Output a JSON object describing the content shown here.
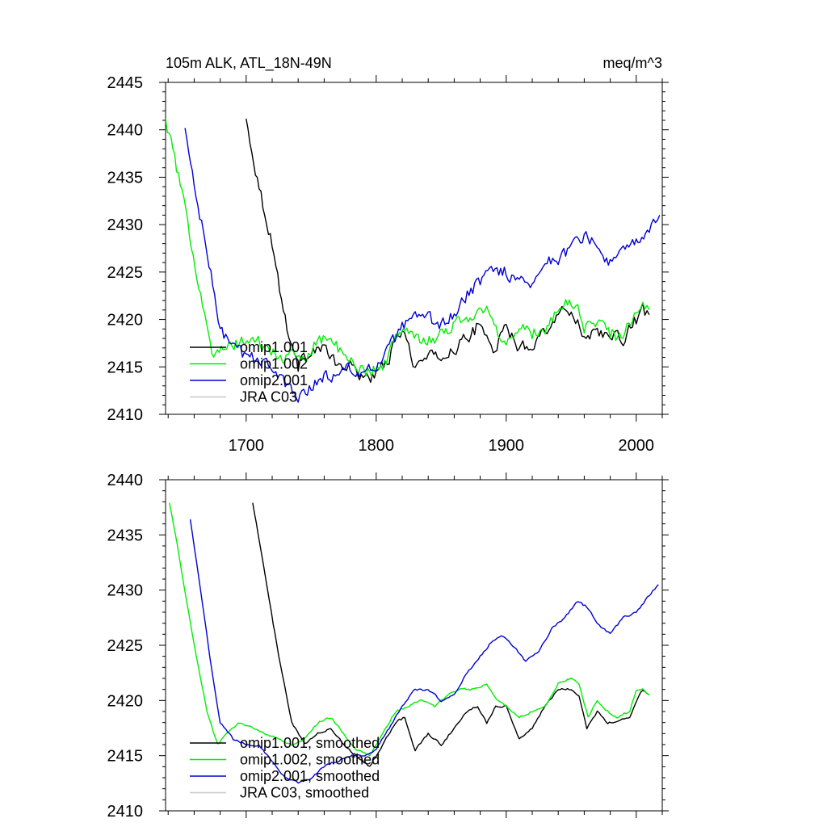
{
  "figure": {
    "title_left": "105m ALK, ATL_18N-49N",
    "title_right": "meq/m^3"
  },
  "chart_data": [
    {
      "type": "line",
      "title": "105m ALK, ATL_18N-49N",
      "units": "meq/m^3",
      "xlabel": "",
      "ylabel": "",
      "xlim": [
        1638,
        2020
      ],
      "ylim": [
        2410,
        2445
      ],
      "xticks": [
        1700,
        1800,
        1900,
        2000
      ],
      "yticks": [
        2410,
        2415,
        2420,
        2425,
        2430,
        2435,
        2440,
        2445
      ],
      "show_x_tick_labels": true,
      "noise": 0.8,
      "legend": {
        "placement": "bottom-left",
        "entries": [
          "omip1.001",
          "omip1.002",
          "omip2.001",
          "JRA C03"
        ]
      },
      "series": [
        {
          "name": "omip1.001",
          "color": "#000000",
          "keyframes": [
            [
              1700,
              2441
            ],
            [
              1710,
              2434
            ],
            [
              1720,
              2428
            ],
            [
              1730,
              2420
            ],
            [
              1740,
              2415
            ],
            [
              1750,
              2417
            ],
            [
              1760,
              2417
            ],
            [
              1770,
              2415
            ],
            [
              1780,
              2415
            ],
            [
              1790,
              2414
            ],
            [
              1800,
              2414
            ],
            [
              1810,
              2416
            ],
            [
              1820,
              2419
            ],
            [
              1825,
              2417
            ],
            [
              1830,
              2415
            ],
            [
              1840,
              2416
            ],
            [
              1850,
              2416
            ],
            [
              1860,
              2417
            ],
            [
              1870,
              2418
            ],
            [
              1880,
              2419.5
            ],
            [
              1885,
              2418
            ],
            [
              1890,
              2417
            ],
            [
              1900,
              2419
            ],
            [
              1910,
              2417
            ],
            [
              1920,
              2417.5
            ],
            [
              1930,
              2419
            ],
            [
              1940,
              2420.5
            ],
            [
              1950,
              2421
            ],
            [
              1955,
              2420
            ],
            [
              1960,
              2418
            ],
            [
              1970,
              2419
            ],
            [
              1980,
              2418
            ],
            [
              1990,
              2418
            ],
            [
              2000,
              2420
            ],
            [
              2005,
              2421
            ],
            [
              2010,
              2420.5
            ]
          ]
        },
        {
          "name": "omip1.002",
          "color": "#00ee00",
          "keyframes": [
            [
              1638,
              2441
            ],
            [
              1645,
              2437
            ],
            [
              1655,
              2430
            ],
            [
              1665,
              2423
            ],
            [
              1675,
              2416
            ],
            [
              1685,
              2417
            ],
            [
              1695,
              2417.5
            ],
            [
              1705,
              2418
            ],
            [
              1715,
              2417
            ],
            [
              1725,
              2416
            ],
            [
              1735,
              2416
            ],
            [
              1745,
              2416
            ],
            [
              1755,
              2418
            ],
            [
              1765,
              2418
            ],
            [
              1775,
              2416
            ],
            [
              1785,
              2415
            ],
            [
              1795,
              2414.5
            ],
            [
              1805,
              2415
            ],
            [
              1815,
              2418
            ],
            [
              1825,
              2419
            ],
            [
              1835,
              2418
            ],
            [
              1845,
              2418
            ],
            [
              1855,
              2419
            ],
            [
              1865,
              2420
            ],
            [
              1875,
              2420.5
            ],
            [
              1885,
              2421
            ],
            [
              1895,
              2418
            ],
            [
              1900,
              2418
            ],
            [
              1910,
              2419
            ],
            [
              1920,
              2418.5
            ],
            [
              1930,
              2419
            ],
            [
              1940,
              2421
            ],
            [
              1950,
              2422
            ],
            [
              1955,
              2421
            ],
            [
              1960,
              2419
            ],
            [
              1970,
              2420
            ],
            [
              1980,
              2418.5
            ],
            [
              1990,
              2418
            ],
            [
              2000,
              2421
            ],
            [
              2005,
              2421.5
            ],
            [
              2010,
              2421
            ]
          ]
        },
        {
          "name": "omip2.001",
          "color": "#0000d8",
          "keyframes": [
            [
              1653,
              2440
            ],
            [
              1660,
              2434
            ],
            [
              1670,
              2427
            ],
            [
              1680,
              2419
            ],
            [
              1690,
              2417
            ],
            [
              1700,
              2416
            ],
            [
              1710,
              2416
            ],
            [
              1720,
              2415
            ],
            [
              1730,
              2413
            ],
            [
              1740,
              2412
            ],
            [
              1750,
              2413
            ],
            [
              1760,
              2414
            ],
            [
              1770,
              2414
            ],
            [
              1780,
              2415
            ],
            [
              1790,
              2414
            ],
            [
              1800,
              2415
            ],
            [
              1810,
              2417
            ],
            [
              1820,
              2419
            ],
            [
              1830,
              2420
            ],
            [
              1840,
              2420
            ],
            [
              1850,
              2419.5
            ],
            [
              1860,
              2420.5
            ],
            [
              1870,
              2422.5
            ],
            [
              1880,
              2424
            ],
            [
              1890,
              2425.5
            ],
            [
              1900,
              2425
            ],
            [
              1910,
              2424
            ],
            [
              1920,
              2424
            ],
            [
              1930,
              2426
            ],
            [
              1940,
              2426.5
            ],
            [
              1950,
              2427.5
            ],
            [
              1960,
              2429
            ],
            [
              1970,
              2427.5
            ],
            [
              1980,
              2426
            ],
            [
              1990,
              2427
            ],
            [
              2000,
              2428
            ],
            [
              2010,
              2429.5
            ],
            [
              2018,
              2431
            ]
          ]
        },
        {
          "name": "JRA C03",
          "color": "#c8c8c8",
          "keyframes": []
        }
      ]
    },
    {
      "type": "line",
      "title": "",
      "xlabel": "",
      "ylabel": "",
      "xlim": [
        1638,
        2020
      ],
      "ylim": [
        2410,
        2440
      ],
      "xticks": [
        1700,
        1800,
        1900,
        2000
      ],
      "yticks": [
        2410,
        2415,
        2420,
        2425,
        2430,
        2435,
        2440
      ],
      "show_x_tick_labels": false,
      "noise": 0.12,
      "legend": {
        "placement": "bottom-left",
        "entries": [
          "omip1.001, smoothed",
          "omip1.002, smoothed",
          "omip2.001, smoothed",
          "JRA C03, smoothed"
        ]
      },
      "series": [
        {
          "name": "omip1.001, smoothed",
          "color": "#000000",
          "keyframes": [
            [
              1705,
              2438
            ],
            [
              1715,
              2431
            ],
            [
              1725,
              2424
            ],
            [
              1735,
              2418
            ],
            [
              1745,
              2416
            ],
            [
              1755,
              2417
            ],
            [
              1765,
              2417.5
            ],
            [
              1775,
              2416
            ],
            [
              1785,
              2415
            ],
            [
              1795,
              2414
            ],
            [
              1805,
              2416
            ],
            [
              1815,
              2418
            ],
            [
              1822,
              2418.5
            ],
            [
              1830,
              2415.5
            ],
            [
              1840,
              2417
            ],
            [
              1850,
              2416
            ],
            [
              1860,
              2417.5
            ],
            [
              1870,
              2419
            ],
            [
              1878,
              2419.5
            ],
            [
              1885,
              2418
            ],
            [
              1892,
              2419.5
            ],
            [
              1900,
              2419.5
            ],
            [
              1910,
              2416.5
            ],
            [
              1920,
              2417.5
            ],
            [
              1930,
              2419.5
            ],
            [
              1940,
              2421
            ],
            [
              1950,
              2421
            ],
            [
              1956,
              2420.5
            ],
            [
              1962,
              2417.5
            ],
            [
              1970,
              2419
            ],
            [
              1978,
              2418
            ],
            [
              1985,
              2418
            ],
            [
              1995,
              2418.5
            ],
            [
              2000,
              2420
            ],
            [
              2005,
              2421
            ],
            [
              2010,
              2420.5
            ]
          ]
        },
        {
          "name": "omip1.002, smoothed",
          "color": "#00ee00",
          "keyframes": [
            [
              1641,
              2438
            ],
            [
              1650,
              2432
            ],
            [
              1660,
              2425
            ],
            [
              1670,
              2419
            ],
            [
              1678,
              2416
            ],
            [
              1685,
              2417
            ],
            [
              1695,
              2418
            ],
            [
              1705,
              2417.5
            ],
            [
              1715,
              2417
            ],
            [
              1725,
              2416.5
            ],
            [
              1735,
              2416
            ],
            [
              1745,
              2416.5
            ],
            [
              1755,
              2418
            ],
            [
              1765,
              2418.5
            ],
            [
              1775,
              2417
            ],
            [
              1785,
              2415.5
            ],
            [
              1795,
              2415
            ],
            [
              1805,
              2417
            ],
            [
              1815,
              2419
            ],
            [
              1825,
              2419.5
            ],
            [
              1835,
              2420
            ],
            [
              1845,
              2419.5
            ],
            [
              1855,
              2420.5
            ],
            [
              1865,
              2421
            ],
            [
              1875,
              2421
            ],
            [
              1885,
              2421.5
            ],
            [
              1893,
              2420
            ],
            [
              1900,
              2419.5
            ],
            [
              1910,
              2418.5
            ],
            [
              1920,
              2419
            ],
            [
              1930,
              2419.5
            ],
            [
              1940,
              2421.5
            ],
            [
              1950,
              2422
            ],
            [
              1956,
              2421.5
            ],
            [
              1963,
              2418.5
            ],
            [
              1970,
              2420
            ],
            [
              1978,
              2419
            ],
            [
              1985,
              2418.5
            ],
            [
              1995,
              2419
            ],
            [
              2000,
              2421
            ],
            [
              2005,
              2421
            ],
            [
              2010,
              2420.5
            ]
          ]
        },
        {
          "name": "omip2.001, smoothed",
          "color": "#0000d8",
          "keyframes": [
            [
              1657,
              2436.5
            ],
            [
              1665,
              2430
            ],
            [
              1672,
              2424
            ],
            [
              1680,
              2418
            ],
            [
              1690,
              2416.5
            ],
            [
              1700,
              2416
            ],
            [
              1710,
              2416
            ],
            [
              1720,
              2414.5
            ],
            [
              1730,
              2413
            ],
            [
              1740,
              2412.5
            ],
            [
              1750,
              2413
            ],
            [
              1760,
              2414
            ],
            [
              1770,
              2414.5
            ],
            [
              1780,
              2415
            ],
            [
              1790,
              2415
            ],
            [
              1800,
              2415.5
            ],
            [
              1810,
              2417.5
            ],
            [
              1820,
              2419.5
            ],
            [
              1830,
              2421
            ],
            [
              1840,
              2421
            ],
            [
              1850,
              2420
            ],
            [
              1860,
              2420.5
            ],
            [
              1870,
              2422.5
            ],
            [
              1880,
              2424
            ],
            [
              1890,
              2425.5
            ],
            [
              1898,
              2425.8
            ],
            [
              1905,
              2425
            ],
            [
              1915,
              2423.5
            ],
            [
              1925,
              2424.5
            ],
            [
              1935,
              2426.5
            ],
            [
              1945,
              2427.5
            ],
            [
              1955,
              2429
            ],
            [
              1962,
              2428.5
            ],
            [
              1970,
              2427
            ],
            [
              1980,
              2426
            ],
            [
              1990,
              2427.5
            ],
            [
              2000,
              2428
            ],
            [
              2010,
              2429.5
            ],
            [
              2017,
              2430.5
            ]
          ]
        },
        {
          "name": "JRA C03, smoothed",
          "color": "#c8c8c8",
          "keyframes": []
        }
      ]
    }
  ]
}
